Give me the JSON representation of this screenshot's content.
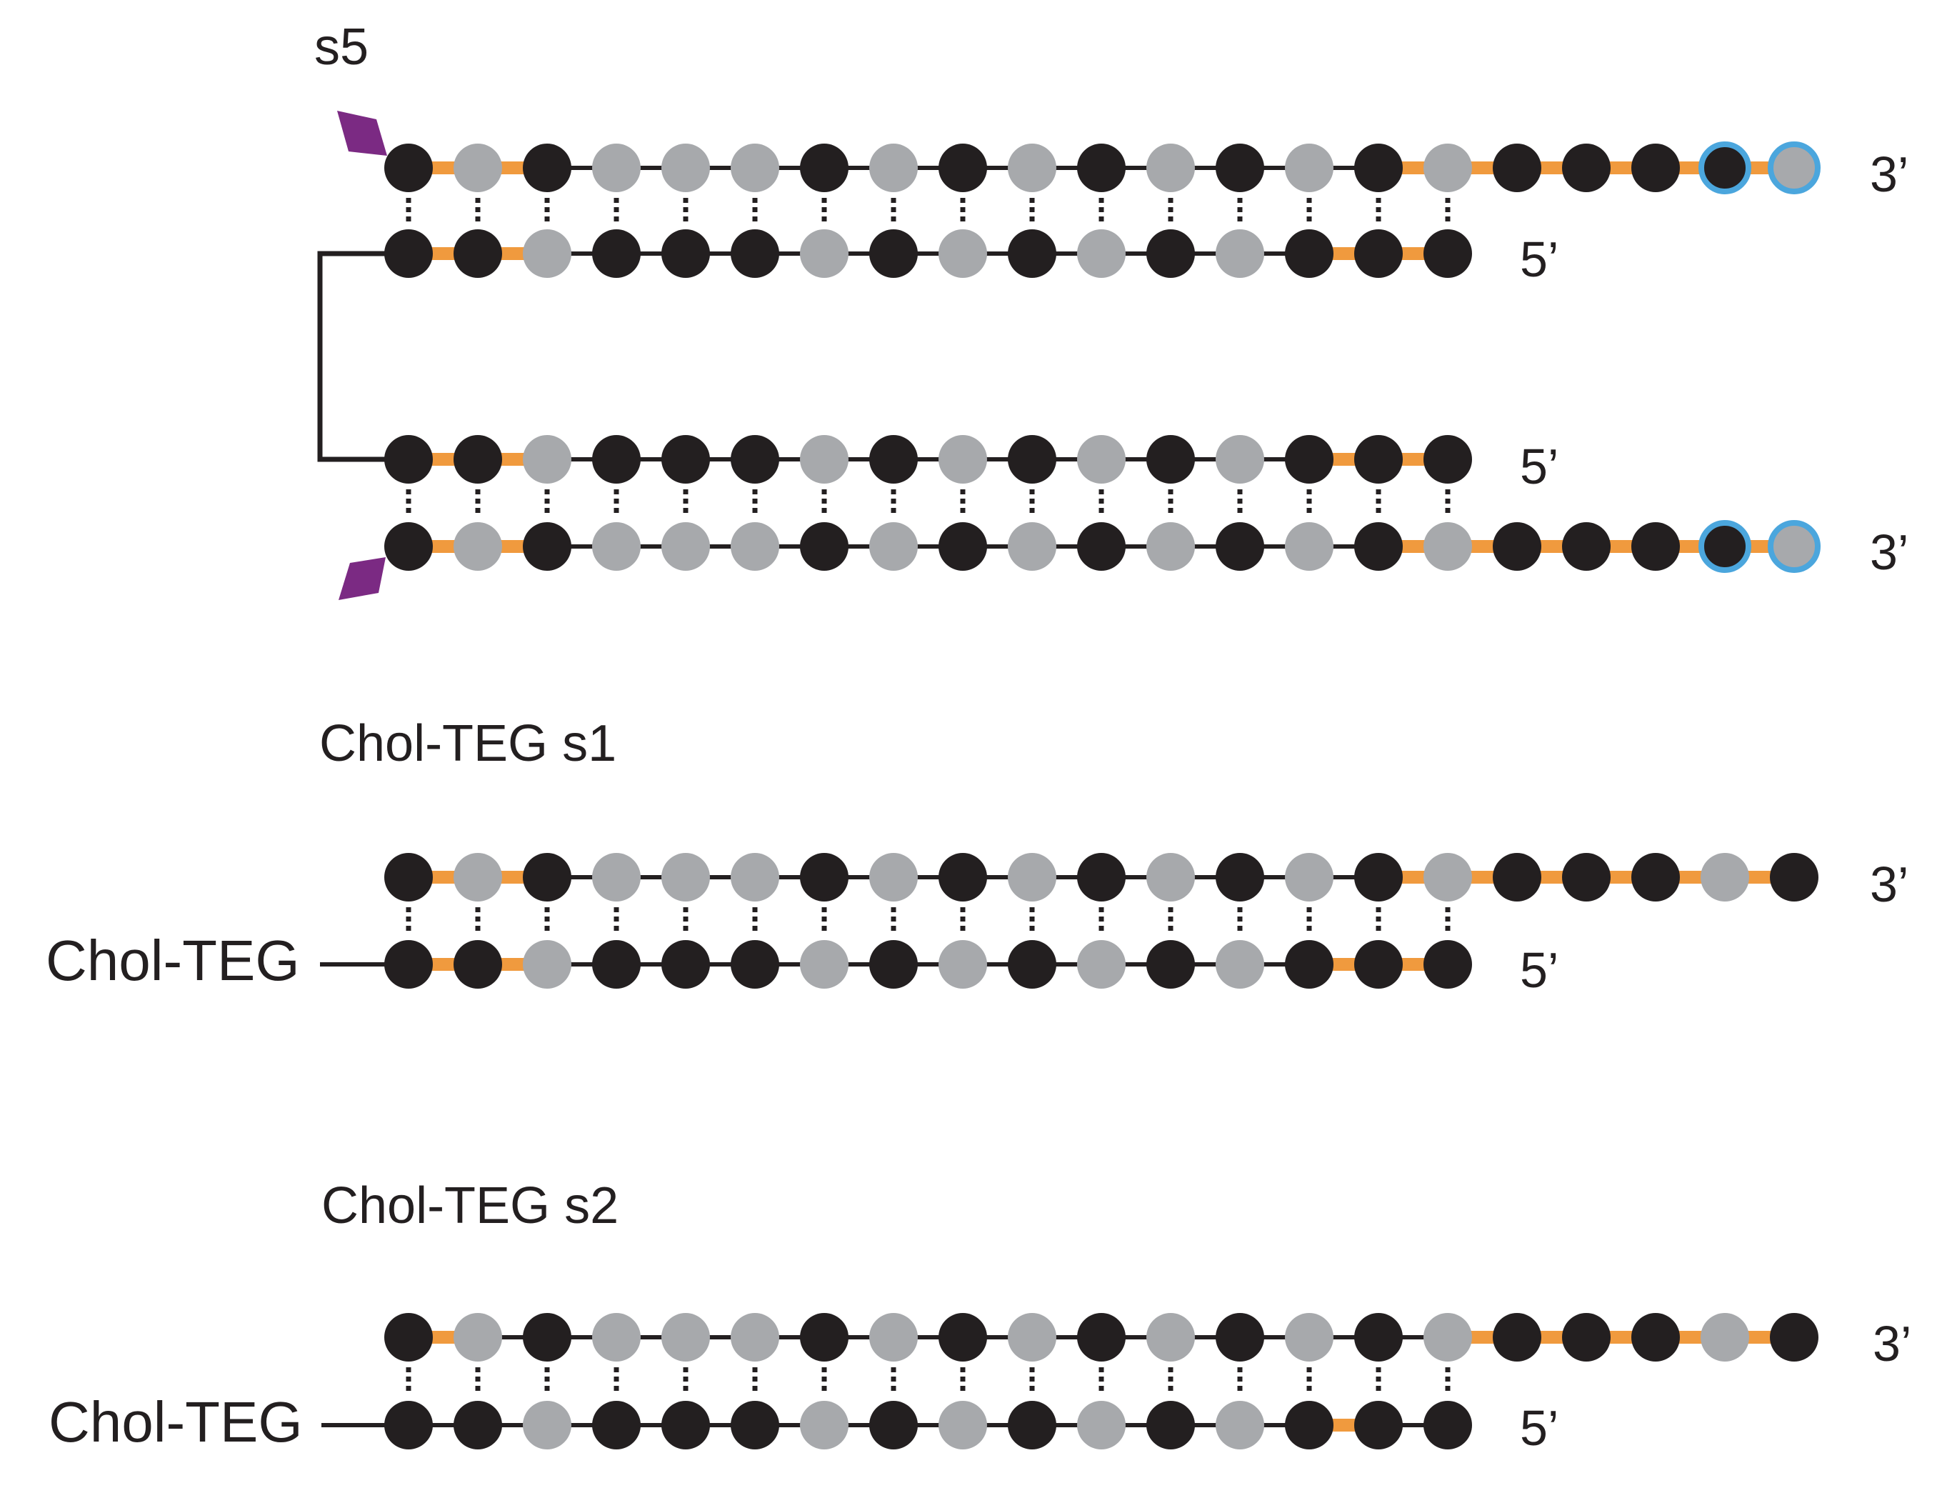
{
  "colors": {
    "dark_nucleotide": "#231f20",
    "light_nucleotide": "#a7a9ac",
    "phosphorothioate_backbone": "#f09a3e",
    "phosphodiester_backbone": "#231f20",
    "highlight_ring": "#4ba6dd",
    "vinylphosphonate_marker": "#7b2a83",
    "base_pair_tick": "#231f20",
    "linker": "#231f20"
  },
  "legend_encoding": {
    "nucleotide": "D = dark (black) circle, L = light (grey) circle",
    "backbone": "o = orange (phosphorothioate-like) link, k = thin black link",
    "ring": "indices of nucleotides outlined in blue"
  },
  "constructs": [
    {
      "id": "s5",
      "title": "s5",
      "duplexes": [
        {
          "guide": {
            "nucleotides": "DLDLLLDLDLDLDLDLDDDDL",
            "backbone": "ookkkkkkkkkkkkoooooo",
            "ring": [
              19,
              20
            ],
            "end_label": "3’",
            "marker": "vinylphosphonate-top"
          },
          "passenger": {
            "nucleotides": "DDLDDDLDLDLDLDDD",
            "backbone": "ookkkkkkkkkkkoo",
            "end_label": "5’"
          },
          "order": "guide-first"
        },
        {
          "guide": {
            "nucleotides": "DLDLLLDLDLDLDLDLDDDDL",
            "backbone": "ookkkkkkkkkkkkoooooo",
            "ring": [
              19,
              20
            ],
            "end_label": "3’",
            "marker": "vinylphosphonate-bottom"
          },
          "passenger": {
            "nucleotides": "DDLDDDLDLDLDLDDD",
            "backbone": "ookkkkkkkkkkkoo",
            "end_label": "5’"
          },
          "order": "passenger-first"
        }
      ],
      "linker": "branched"
    },
    {
      "id": "chol-teg-s1",
      "title": "Chol-TEG s1",
      "conjugate_label": "Chol-TEG",
      "duplexes": [
        {
          "guide": {
            "nucleotides": "DLDLLLDLDLDLDLDLDDDLD",
            "backbone": "ookkkkkkkkkkkkoooooo",
            "ring": [],
            "end_label": "3’"
          },
          "passenger": {
            "nucleotides": "DDLDDDLDLDLDLDDD",
            "backbone": "ookkkkkkkkkkkoo",
            "end_label": "5’"
          },
          "order": "guide-first"
        }
      ]
    },
    {
      "id": "chol-teg-s2",
      "title": "Chol-TEG s2",
      "conjugate_label": "Chol-TEG",
      "duplexes": [
        {
          "guide": {
            "nucleotides": "DLDLLLDLDLDLDLDLDDDLD",
            "backbone": "okkkkkkkkkkkkkkooooo",
            "ring": [],
            "end_label": "3’"
          },
          "passenger": {
            "nucleotides": "DDLDDDLDLDLDLDDD",
            "backbone": "kkkkkkkkkkkkkok",
            "end_label": "5’"
          },
          "order": "guide-first"
        }
      ]
    }
  ]
}
